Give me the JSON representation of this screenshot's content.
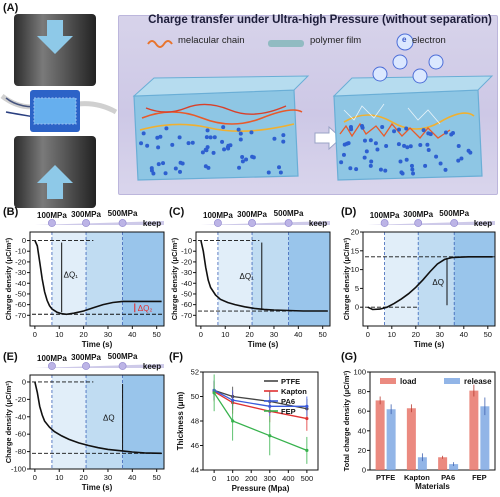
{
  "panel_a": {
    "label": "(A)",
    "title": "Charge transfer under Ultra-high Pressure (without separation)",
    "legend_chain": "melacular chain",
    "legend_film": "polymer film",
    "legend_electron": "electron",
    "electron_symbol": "e"
  },
  "colors": {
    "banner": "#cfcae6",
    "block_blue": "#8ec6e4",
    "arrow_blue": "#8ec9e8",
    "press_dark": "#3d3d3d",
    "shade_blue": "#5aa2de",
    "ptfe": "#444444",
    "kapton": "#e03131",
    "pa6": "#3b5bdb",
    "fep": "#37b24d",
    "load": "#e8756a",
    "release": "#7fa8e3"
  },
  "chart_data": [
    {
      "panel": "(B)",
      "type": "line",
      "xlabel": "Time (s)",
      "ylabel": "Charge density (μC/m²)",
      "xlim": [
        -2,
        53
      ],
      "ylim": [
        -80,
        8
      ],
      "xticks": [
        0,
        10,
        20,
        30,
        40,
        50
      ],
      "yticks": [
        0,
        -10,
        -20,
        -30,
        -40,
        -50,
        -60,
        -70
      ],
      "stages": [
        "100MPa",
        "300MPa",
        "500MPa",
        "keep"
      ],
      "stage_times": [
        7,
        21,
        36
      ],
      "annotations": [
        "ΔQ₁",
        "ΔQ₂"
      ],
      "x": [
        0,
        1,
        2,
        3,
        4,
        5,
        6,
        7,
        9,
        11,
        13,
        16,
        20,
        24,
        28,
        32,
        36,
        40,
        45,
        52
      ],
      "y": [
        0,
        -5,
        -20,
        -36,
        -48,
        -56,
        -61,
        -64,
        -67,
        -68.5,
        -69,
        -68,
        -66,
        -63,
        -60,
        -58,
        -57,
        -57,
        -57,
        -57
      ]
    },
    {
      "panel": "(C)",
      "type": "line",
      "xlabel": "Time (s)",
      "ylabel": "Charge density (μC/m²)",
      "xlim": [
        -2,
        53
      ],
      "ylim": [
        -80,
        8
      ],
      "xticks": [
        0,
        10,
        20,
        30,
        40,
        50
      ],
      "yticks": [
        0,
        -10,
        -20,
        -30,
        -40,
        -50,
        -60,
        -70
      ],
      "stages": [
        "100MPa",
        "300MPa",
        "500MPa",
        "keep"
      ],
      "stage_times": [
        7,
        21,
        36
      ],
      "annotations": [
        "ΔQ₁"
      ],
      "x": [
        0,
        1,
        2,
        3,
        4,
        6,
        8,
        11,
        14,
        18,
        22,
        26,
        30,
        36,
        42,
        52
      ],
      "y": [
        0,
        -10,
        -25,
        -37,
        -44,
        -51,
        -55,
        -58,
        -60,
        -62,
        -63.5,
        -64.5,
        -65,
        -65.5,
        -66,
        -66
      ]
    },
    {
      "panel": "(D)",
      "type": "line",
      "xlabel": "Time (s)",
      "ylabel": "Charge density (μC/m²)",
      "xlim": [
        -2,
        53
      ],
      "ylim": [
        -5,
        20
      ],
      "xticks": [
        0,
        10,
        20,
        30,
        40,
        50
      ],
      "yticks": [
        20,
        15,
        10,
        5,
        0
      ],
      "stages": [
        "100MPa",
        "300MPa",
        "500MPa",
        "keep"
      ],
      "stage_times": [
        7,
        21,
        36
      ],
      "annotations": [
        "ΔQ"
      ],
      "x": [
        0,
        2,
        5,
        8,
        11,
        14,
        17,
        20,
        23,
        26,
        29,
        32,
        35,
        38,
        42,
        52
      ],
      "y": [
        0,
        -0.6,
        -0.5,
        0,
        1,
        2.2,
        3.6,
        5.3,
        7.3,
        9.5,
        11.5,
        12.7,
        13.2,
        13.3,
        13.4,
        13.4
      ]
    },
    {
      "panel": "(E)",
      "type": "line",
      "xlabel": "Time (s)",
      "ylabel": "Charge density (μC/m²)",
      "xlim": [
        -2,
        53
      ],
      "ylim": [
        -100,
        8
      ],
      "xticks": [
        0,
        10,
        20,
        30,
        40,
        50
      ],
      "yticks": [
        0,
        -20,
        -40,
        -60,
        -80,
        -100
      ],
      "stages": [
        "100MPa",
        "300MPa",
        "500MPa",
        "keep"
      ],
      "stage_times": [
        7,
        21,
        36
      ],
      "annotations": [
        "ΔQ"
      ],
      "x": [
        0,
        1,
        2,
        3,
        4,
        6,
        8,
        11,
        14,
        18,
        22,
        26,
        30,
        35,
        40,
        45,
        52
      ],
      "y": [
        0,
        -12,
        -28,
        -38,
        -45,
        -52,
        -57,
        -62,
        -66,
        -70,
        -73,
        -75.5,
        -77.5,
        -79,
        -80.5,
        -81.5,
        -82
      ]
    },
    {
      "panel": "(F)",
      "type": "line",
      "xlabel": "Pressure (Mpa)",
      "ylabel": "Thickness (μm)",
      "x": [
        0,
        100,
        300,
        500
      ],
      "xticks": [
        0,
        100,
        200,
        300,
        400,
        500
      ],
      "ylim": [
        44,
        52
      ],
      "yticks": [
        44,
        46,
        48,
        50,
        52
      ],
      "series": [
        {
          "name": "PTFE",
          "values": [
            50.5,
            50.0,
            49.6,
            49.0
          ],
          "err": [
            0.8,
            0.8,
            0.8,
            0.8
          ]
        },
        {
          "name": "Kapton",
          "values": [
            50.4,
            49.5,
            48.8,
            48.2
          ],
          "err": [
            0.8,
            0.9,
            0.9,
            1.0
          ]
        },
        {
          "name": "PA6",
          "values": [
            50.5,
            49.7,
            49.2,
            49.2
          ],
          "err": [
            0.8,
            0.8,
            0.8,
            0.8
          ]
        },
        {
          "name": "FEP",
          "values": [
            50.3,
            48.0,
            46.8,
            45.6
          ],
          "err": [
            1.5,
            1.6,
            1.6,
            1.1
          ]
        }
      ]
    },
    {
      "panel": "(G)",
      "type": "bar",
      "xlabel": "Materials",
      "ylabel": "Total charge density (μC/m²)",
      "categories": [
        "PTFE",
        "Kapton",
        "PA6",
        "FEP"
      ],
      "ylim": [
        0,
        100
      ],
      "yticks": [
        0,
        20,
        40,
        60,
        80,
        100
      ],
      "series": [
        {
          "name": "load",
          "values": [
            71,
            63,
            13,
            81
          ],
          "err": [
            4,
            4,
            1.5,
            6
          ]
        },
        {
          "name": "release",
          "values": [
            62,
            13,
            6,
            65
          ],
          "err": [
            5,
            4,
            2,
            9
          ]
        }
      ]
    }
  ]
}
